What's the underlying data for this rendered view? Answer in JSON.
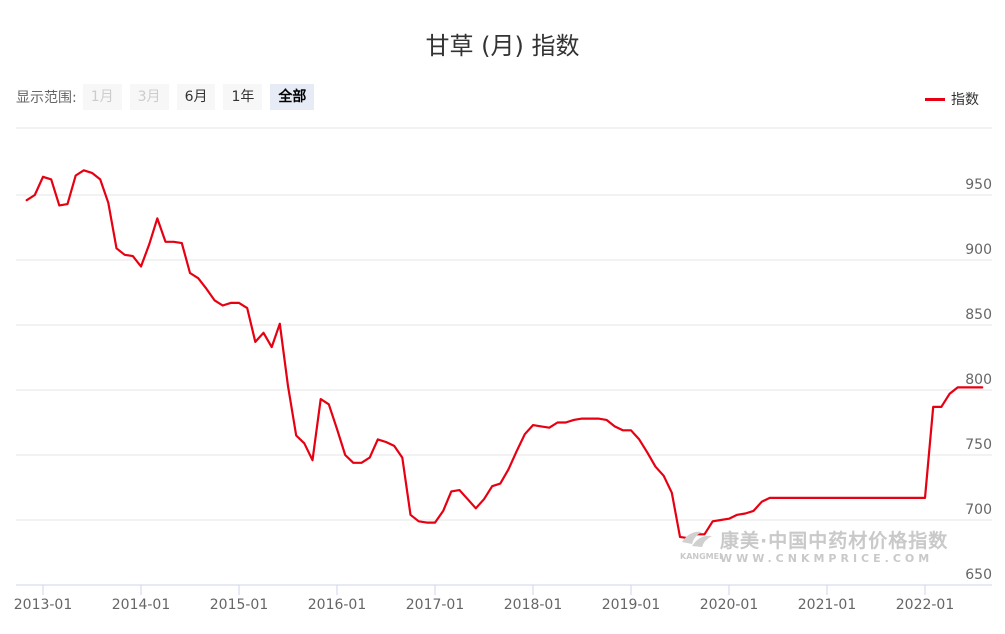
{
  "title": "甘草 (月) 指数",
  "range_selector": {
    "label": "显示范围:",
    "buttons": [
      {
        "label": "1月",
        "state": "disabled"
      },
      {
        "label": "3月",
        "state": "disabled"
      },
      {
        "label": "6月",
        "state": "normal"
      },
      {
        "label": "1年",
        "state": "normal"
      },
      {
        "label": "全部",
        "state": "active"
      }
    ]
  },
  "legend": {
    "label": "指数",
    "color": "#e60012"
  },
  "watermark": {
    "chinese": "康美·中国中药材价格指数",
    "english": "WWW.CNKMPRICE.COM",
    "brand": "KANGMEI"
  },
  "chart_data": {
    "type": "line",
    "title": "甘草 (月) 指数",
    "xlabel": "",
    "ylabel": "",
    "x_ticks": [
      "2013-01",
      "2014-01",
      "2015-01",
      "2016-01",
      "2017-01",
      "2018-01",
      "2019-01",
      "2020-01",
      "2021-01",
      "2022-01"
    ],
    "y_ticks": [
      650,
      700,
      750,
      800,
      850,
      900,
      950
    ],
    "ylim": [
      650,
      1000
    ],
    "grid": true,
    "legend_position": "top-right",
    "series": [
      {
        "name": "指数",
        "color": "#e60012",
        "x": [
          "2012-11",
          "2012-12",
          "2013-01",
          "2013-02",
          "2013-03",
          "2013-04",
          "2013-05",
          "2013-06",
          "2013-07",
          "2013-08",
          "2013-09",
          "2013-10",
          "2013-11",
          "2013-12",
          "2014-01",
          "2014-02",
          "2014-03",
          "2014-04",
          "2014-05",
          "2014-06",
          "2014-07",
          "2014-08",
          "2014-09",
          "2014-10",
          "2014-11",
          "2014-12",
          "2015-01",
          "2015-02",
          "2015-03",
          "2015-04",
          "2015-05",
          "2015-06",
          "2015-07",
          "2015-08",
          "2015-09",
          "2015-10",
          "2015-11",
          "2015-12",
          "2016-01",
          "2016-02",
          "2016-03",
          "2016-04",
          "2016-05",
          "2016-06",
          "2016-07",
          "2016-08",
          "2016-09",
          "2016-10",
          "2016-11",
          "2016-12",
          "2017-01",
          "2017-02",
          "2017-03",
          "2017-04",
          "2017-05",
          "2017-06",
          "2017-07",
          "2017-08",
          "2017-09",
          "2017-10",
          "2017-11",
          "2017-12",
          "2018-01",
          "2018-02",
          "2018-03",
          "2018-04",
          "2018-05",
          "2018-06",
          "2018-07",
          "2018-08",
          "2018-09",
          "2018-10",
          "2018-11",
          "2018-12",
          "2019-01",
          "2019-02",
          "2019-03",
          "2019-04",
          "2019-05",
          "2019-06",
          "2019-07",
          "2019-08",
          "2019-09",
          "2019-10",
          "2019-11",
          "2019-12",
          "2020-01",
          "2020-02",
          "2020-03",
          "2020-04",
          "2020-05",
          "2020-06",
          "2020-07",
          "2020-08",
          "2020-09",
          "2020-10",
          "2020-11",
          "2020-12",
          "2021-01",
          "2021-02",
          "2021-03",
          "2021-04",
          "2021-05",
          "2021-06",
          "2021-07",
          "2021-08",
          "2021-09",
          "2021-10",
          "2021-11",
          "2021-12",
          "2022-01",
          "2022-02",
          "2022-03",
          "2022-04",
          "2022-05",
          "2022-06",
          "2022-07",
          "2022-08"
        ],
        "values": [
          946,
          950,
          964,
          962,
          942,
          943,
          965,
          969,
          967,
          962,
          944,
          909,
          904,
          903,
          895,
          912,
          932,
          914,
          914,
          913,
          890,
          886,
          878,
          869,
          865,
          867,
          867,
          863,
          837,
          844,
          833,
          851,
          803,
          765,
          759,
          746,
          793,
          789,
          770,
          750,
          744,
          744,
          748,
          762,
          760,
          757,
          748,
          704,
          699,
          698,
          698,
          707,
          722,
          723,
          716,
          709,
          716,
          726,
          728,
          739,
          753,
          766,
          773,
          772,
          771,
          775,
          775,
          777,
          778,
          778,
          778,
          777,
          772,
          769,
          769,
          762,
          752,
          741,
          734,
          721,
          687,
          686,
          689,
          689,
          699,
          700,
          701,
          704,
          705,
          707,
          714,
          717,
          717,
          717,
          717,
          717,
          717,
          717,
          717,
          717,
          717,
          717,
          717,
          717,
          717,
          717,
          717,
          717,
          717,
          717,
          717,
          787,
          787,
          797,
          802,
          802,
          802,
          802
        ]
      }
    ]
  }
}
